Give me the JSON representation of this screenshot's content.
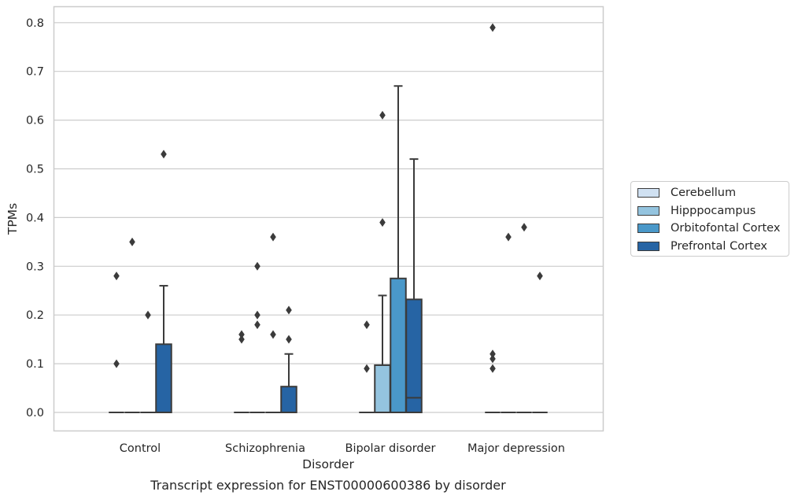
{
  "chart_data": {
    "type": "box",
    "title": "Transcript expression for ENST00000600386 by disorder",
    "xlabel": "Disorder",
    "ylabel": "TPMs",
    "ylim": [
      -0.04,
      0.83
    ],
    "yticks": [
      "0.0",
      "0.1",
      "0.2",
      "0.3",
      "0.4",
      "0.5",
      "0.6",
      "0.7",
      "0.8"
    ],
    "categories": [
      "Control",
      "Schizophrenia",
      "Bipolar disorder",
      "Major depression"
    ],
    "grid": "horizontal",
    "legend_position": "right",
    "series": [
      {
        "name": "Cerebellum",
        "color": "#d0e1f2",
        "boxes": [
          {
            "q1": 0,
            "median": 0,
            "q3": 0,
            "whisker_low": 0,
            "whisker_high": 0,
            "outliers": [
              0.1,
              0.28
            ]
          },
          {
            "q1": 0,
            "median": 0,
            "q3": 0,
            "whisker_low": 0,
            "whisker_high": 0,
            "outliers": [
              0.15,
              0.16
            ]
          },
          {
            "q1": 0,
            "median": 0,
            "q3": 0,
            "whisker_low": 0,
            "whisker_high": 0,
            "outliers": [
              0.09,
              0.18
            ]
          },
          {
            "q1": 0,
            "median": 0,
            "q3": 0,
            "whisker_low": 0,
            "whisker_high": 0,
            "outliers": [
              0.09,
              0.11,
              0.12,
              0.79
            ]
          }
        ]
      },
      {
        "name": "Hipppocampus",
        "color": "#94c4df",
        "boxes": [
          {
            "q1": 0,
            "median": 0,
            "q3": 0,
            "whisker_low": 0,
            "whisker_high": 0,
            "outliers": [
              0.35
            ]
          },
          {
            "q1": 0,
            "median": 0,
            "q3": 0,
            "whisker_low": 0,
            "whisker_high": 0,
            "outliers": [
              0.18,
              0.2,
              0.3
            ]
          },
          {
            "q1": 0,
            "median": 0,
            "q3": 0.097,
            "whisker_low": 0,
            "whisker_high": 0.24,
            "outliers": [
              0.39,
              0.61
            ]
          },
          {
            "q1": 0,
            "median": 0,
            "q3": 0,
            "whisker_low": 0,
            "whisker_high": 0,
            "outliers": [
              0.36
            ]
          }
        ]
      },
      {
        "name": "Orbitofontal Cortex",
        "color": "#4a98c9",
        "boxes": [
          {
            "q1": 0,
            "median": 0,
            "q3": 0,
            "whisker_low": 0,
            "whisker_high": 0,
            "outliers": [
              0.2
            ]
          },
          {
            "q1": 0,
            "median": 0,
            "q3": 0,
            "whisker_low": 0,
            "whisker_high": 0,
            "outliers": [
              0.16,
              0.36
            ]
          },
          {
            "q1": 0,
            "median": 0,
            "q3": 0.275,
            "whisker_low": 0,
            "whisker_high": 0.67,
            "outliers": []
          },
          {
            "q1": 0,
            "median": 0,
            "q3": 0,
            "whisker_low": 0,
            "whisker_high": 0,
            "outliers": [
              0.38
            ]
          }
        ]
      },
      {
        "name": "Prefrontal Cortex",
        "color": "#2664a4",
        "boxes": [
          {
            "q1": 0,
            "median": 0,
            "q3": 0.14,
            "whisker_low": 0,
            "whisker_high": 0.26,
            "outliers": [
              0.53
            ]
          },
          {
            "q1": 0,
            "median": 0,
            "q3": 0.053,
            "whisker_low": 0,
            "whisker_high": 0.12,
            "outliers": [
              0.15,
              0.21
            ]
          },
          {
            "q1": 0,
            "median": 0.03,
            "q3": 0.232,
            "whisker_low": 0,
            "whisker_high": 0.52,
            "outliers": []
          },
          {
            "q1": 0,
            "median": 0,
            "q3": 0,
            "whisker_low": 0,
            "whisker_high": 0,
            "outliers": [
              0.28
            ]
          }
        ]
      }
    ]
  }
}
